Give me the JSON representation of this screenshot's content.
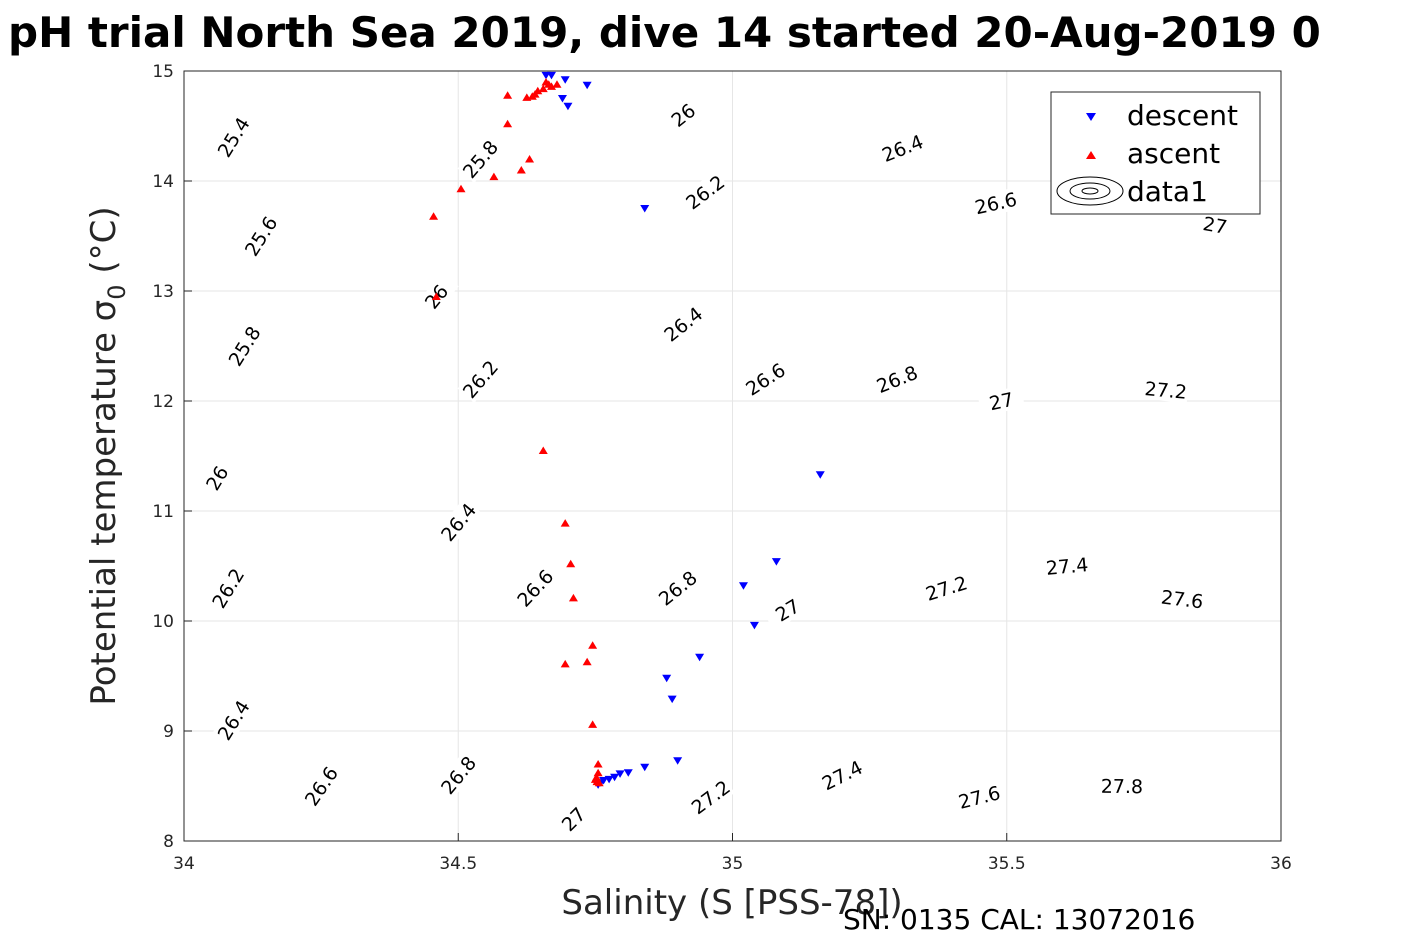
{
  "chart_data": {
    "type": "scatter",
    "title": "pH trial North Sea 2019, dive 14 started 20-Aug-2019 0",
    "xlabel": "Salinity (S [PSS-78])",
    "ylabel": "Potential temperature σ",
    "ylabel_sub": "0",
    "ylabel_unit": " (°C)",
    "xlim": [
      34,
      36
    ],
    "ylim": [
      8,
      15
    ],
    "xticks": [
      "34",
      "34.5",
      "35",
      "35.5",
      "36"
    ],
    "yticks": [
      "8",
      "9",
      "10",
      "11",
      "12",
      "13",
      "14",
      "15"
    ],
    "grid": true,
    "legend_position": "top-right",
    "series": [
      {
        "name": "descent",
        "marker": "triangle-down",
        "color": "#0000ff",
        "points": [
          [
            34.66,
            14.96
          ],
          [
            34.67,
            14.96
          ],
          [
            34.695,
            14.92
          ],
          [
            34.735,
            14.87
          ],
          [
            34.69,
            14.75
          ],
          [
            34.7,
            14.68
          ],
          [
            34.84,
            13.75
          ],
          [
            35.16,
            11.33
          ],
          [
            35.08,
            10.54
          ],
          [
            35.02,
            10.32
          ],
          [
            35.04,
            9.96
          ],
          [
            34.94,
            9.67
          ],
          [
            34.88,
            9.48
          ],
          [
            34.89,
            9.29
          ],
          [
            34.9,
            8.73
          ],
          [
            34.84,
            8.67
          ],
          [
            34.81,
            8.62
          ],
          [
            34.795,
            8.61
          ],
          [
            34.785,
            8.58
          ],
          [
            34.775,
            8.56
          ],
          [
            34.765,
            8.55
          ],
          [
            34.76,
            8.53
          ],
          [
            34.755,
            8.51
          ]
        ]
      },
      {
        "name": "ascent",
        "marker": "triangle-up",
        "color": "#ff0000",
        "points": [
          [
            34.66,
            14.9
          ],
          [
            34.665,
            14.88
          ],
          [
            34.67,
            14.86
          ],
          [
            34.68,
            14.88
          ],
          [
            34.655,
            14.84
          ],
          [
            34.645,
            14.82
          ],
          [
            34.64,
            14.79
          ],
          [
            34.635,
            14.77
          ],
          [
            34.625,
            14.76
          ],
          [
            34.59,
            14.78
          ],
          [
            34.59,
            14.52
          ],
          [
            34.63,
            14.2
          ],
          [
            34.615,
            14.1
          ],
          [
            34.565,
            14.04
          ],
          [
            34.505,
            13.93
          ],
          [
            34.455,
            13.68
          ],
          [
            34.46,
            12.95
          ],
          [
            34.655,
            11.55
          ],
          [
            34.695,
            10.89
          ],
          [
            34.705,
            10.52
          ],
          [
            34.71,
            10.21
          ],
          [
            34.745,
            9.78
          ],
          [
            34.735,
            9.63
          ],
          [
            34.695,
            9.61
          ],
          [
            34.745,
            9.06
          ],
          [
            34.755,
            8.7
          ],
          [
            34.755,
            8.62
          ],
          [
            34.752,
            8.58
          ],
          [
            34.75,
            8.56
          ],
          [
            34.753,
            8.54
          ],
          [
            34.757,
            8.53
          ]
        ]
      }
    ],
    "contour_series": "data1",
    "contour_levels": [
      {
        "v": 25.4,
        "c": 33.9,
        "labels": [
          [
            34.09,
            14.4
          ]
        ]
      },
      {
        "v": 25.6,
        "c": 33.7,
        "labels": [
          [
            34.14,
            13.5
          ]
        ]
      },
      {
        "v": 25.8,
        "c": 33.5,
        "labels": [
          [
            34.11,
            12.5
          ],
          [
            34.54,
            14.2
          ]
        ]
      },
      {
        "v": 26,
        "c": 33.3,
        "labels": [
          [
            34.06,
            11.3
          ],
          [
            34.46,
            12.95
          ],
          [
            34.91,
            14.6
          ]
        ]
      },
      {
        "v": 26.2,
        "c": 33.1,
        "labels": [
          [
            34.08,
            10.3
          ],
          [
            34.54,
            12.2
          ],
          [
            34.95,
            13.9
          ]
        ]
      },
      {
        "v": 26.4,
        "c": 32.9,
        "labels": [
          [
            34.09,
            9.1
          ],
          [
            34.5,
            10.9
          ],
          [
            34.91,
            12.7
          ],
          [
            35.31,
            14.3
          ]
        ]
      },
      {
        "v": 26.6,
        "c": 32.7,
        "labels": [
          [
            34.25,
            8.5
          ],
          [
            34.64,
            10.3
          ],
          [
            35.06,
            12.2
          ],
          [
            35.48,
            13.8
          ]
        ]
      },
      {
        "v": 26.8,
        "c": 32.5,
        "labels": [
          [
            34.5,
            8.6
          ],
          [
            34.9,
            10.3
          ],
          [
            35.3,
            12.2
          ]
        ]
      },
      {
        "v": 27,
        "c": 32.3,
        "labels": [
          [
            34.71,
            8.2
          ],
          [
            35.1,
            10.1
          ],
          [
            35.49,
            12.0
          ],
          [
            35.88,
            13.6
          ]
        ]
      },
      {
        "v": 27.2,
        "c": 32.1,
        "labels": [
          [
            34.96,
            8.4
          ],
          [
            35.39,
            10.3
          ],
          [
            35.79,
            12.1
          ]
        ]
      },
      {
        "v": 27.4,
        "c": 31.9,
        "labels": [
          [
            35.2,
            8.6
          ],
          [
            35.61,
            10.5
          ]
        ]
      },
      {
        "v": 27.6,
        "c": 31.7,
        "labels": [
          [
            35.45,
            8.4
          ],
          [
            35.82,
            10.2
          ]
        ]
      },
      {
        "v": 27.8,
        "c": 31.5,
        "labels": [
          [
            35.71,
            8.5
          ]
        ]
      }
    ],
    "footer": "SN: 0135  CAL: 13072016"
  }
}
